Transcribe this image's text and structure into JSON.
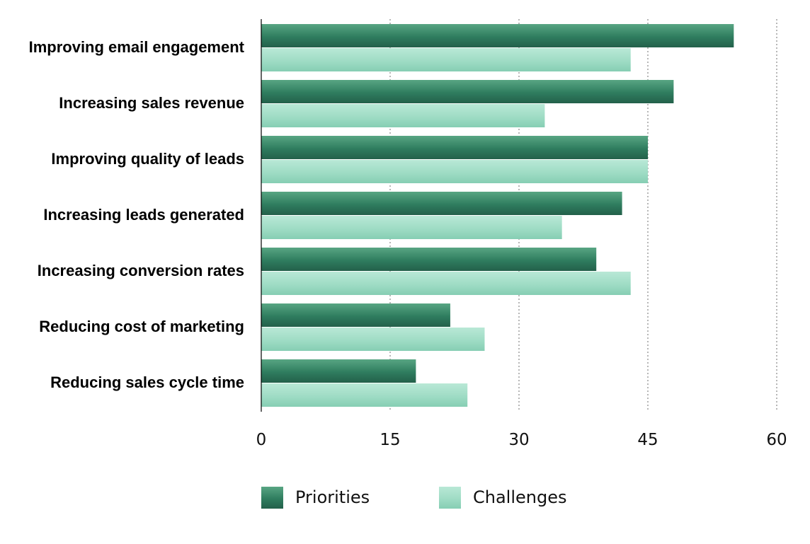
{
  "chart_data": {
    "type": "bar",
    "orientation": "horizontal",
    "categories": [
      "Improving email engagement",
      "Increasing sales revenue",
      "Improving quality of leads",
      "Increasing leads generated",
      "Increasing conversion rates",
      "Reducing cost of marketing",
      "Reducing sales cycle time"
    ],
    "series": [
      {
        "name": "Priorities",
        "color": "#2f7d5f",
        "values": [
          55,
          48,
          45,
          42,
          39,
          22,
          18
        ]
      },
      {
        "name": "Challenges",
        "color": "#9fdcc5",
        "values": [
          43,
          33,
          45,
          35,
          43,
          26,
          24
        ]
      }
    ],
    "x_ticks": [
      "0",
      "15",
      "30",
      "45",
      "60"
    ],
    "xlim": [
      0,
      60
    ],
    "title": "",
    "xlabel": "",
    "ylabel": "",
    "grid": "vertical dotted",
    "legend_position": "bottom-left"
  }
}
